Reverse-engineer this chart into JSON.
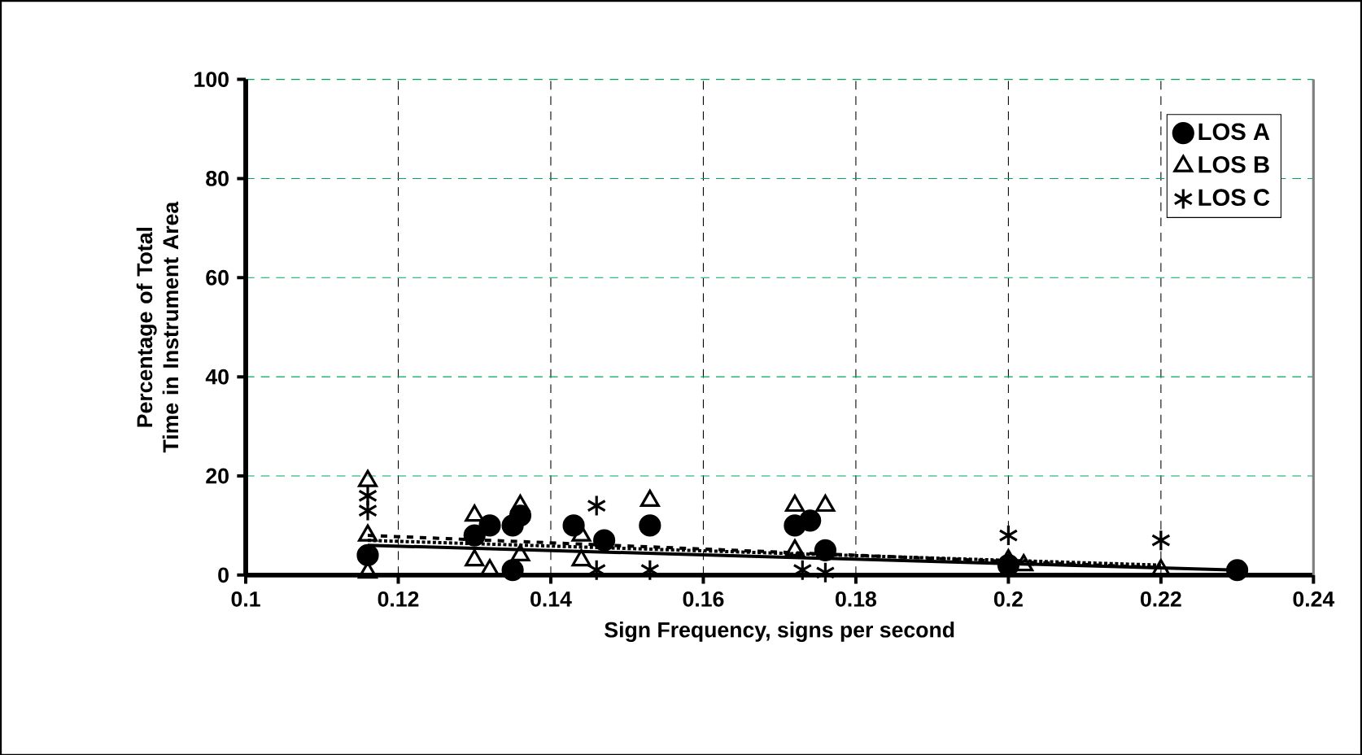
{
  "chart_data": {
    "type": "scatter",
    "xlabel": "Sign Frequency, signs per second",
    "ylabel": "Percentage of Total Time in Instrument Area",
    "xlim": [
      0.1,
      0.24
    ],
    "xticks": [
      0.1,
      0.12,
      0.14,
      0.16,
      0.18,
      0.2,
      0.22,
      0.24
    ],
    "ylim": [
      0,
      100
    ],
    "yticks": [
      0,
      20,
      40,
      60,
      80,
      100
    ],
    "grid": true,
    "legend": "top right",
    "series": [
      {
        "name": "LOS A",
        "color": "#000000",
        "marker": "circle",
        "x": [
          0.116,
          0.13,
          0.132,
          0.135,
          0.135,
          0.136,
          0.143,
          0.147,
          0.153,
          0.172,
          0.174,
          0.176,
          0.2,
          0.23
        ],
        "values": [
          4,
          8,
          10,
          1,
          10,
          12,
          10,
          7,
          10,
          10,
          11,
          5,
          2,
          1
        ]
      },
      {
        "name": "LOS B",
        "color": "#000000",
        "marker": "triangle",
        "x": [
          0.116,
          0.116,
          0.116,
          0.13,
          0.13,
          0.132,
          0.136,
          0.136,
          0.144,
          0.144,
          0.153,
          0.172,
          0.172,
          0.176,
          0.2,
          0.202,
          0.22
        ],
        "values": [
          19,
          8,
          0.5,
          12,
          3,
          1,
          14,
          4,
          8,
          3,
          15,
          14,
          5,
          14,
          3,
          2,
          1
        ]
      },
      {
        "name": "LOS C",
        "color": "#000000",
        "marker": "cross",
        "x": [
          0.116,
          0.116,
          0.146,
          0.146,
          0.153,
          0.173,
          0.176,
          0.2,
          0.22
        ],
        "values": [
          13,
          16,
          14,
          1,
          1,
          1,
          0.5,
          8,
          7
        ]
      },
      {
        "type": "line",
        "color": "#000000",
        "line_style": "solid",
        "x": [
          0.116,
          0.23
        ],
        "values": [
          6,
          1
        ]
      },
      {
        "type": "line",
        "color": "#000000",
        "line_style": "dashed",
        "x": [
          0.116,
          0.22
        ],
        "values": [
          8,
          1.5
        ]
      },
      {
        "type": "line",
        "color": "#000000",
        "line_style": "dotted",
        "x": [
          0.116,
          0.22
        ],
        "values": [
          7,
          2
        ]
      }
    ]
  }
}
